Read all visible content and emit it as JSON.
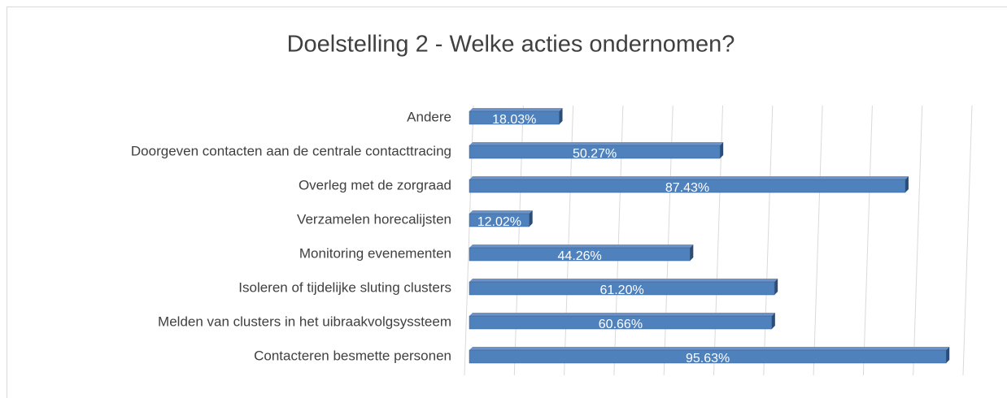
{
  "chart_data": {
    "type": "bar",
    "orientation": "horizontal",
    "title": "Doelstelling 2 - Welke acties ondernomen?",
    "categories": [
      "Andere",
      "Doorgeven contacten aan de centrale contacttracing",
      "Overleg met de zorgraad",
      "Verzamelen horecalijsten",
      "Monitoring evenementen",
      "Isoleren of tijdelijke sluting clusters",
      "Melden van clusters in het uibraakvolgsyssteem",
      "Contacteren besmette personen"
    ],
    "values": [
      18.03,
      50.27,
      87.43,
      12.02,
      44.26,
      61.2,
      60.66,
      95.63
    ],
    "value_labels": [
      "18.03%",
      "50.27%",
      "87.43%",
      "12.02%",
      "44.26%",
      "61.20%",
      "60.66%",
      "95.63%"
    ],
    "color": "#4f81bd",
    "xlim": [
      0,
      100
    ],
    "xticks": [
      0,
      10,
      20,
      30,
      40,
      50,
      60,
      70,
      80,
      90,
      100
    ],
    "grid": true
  }
}
